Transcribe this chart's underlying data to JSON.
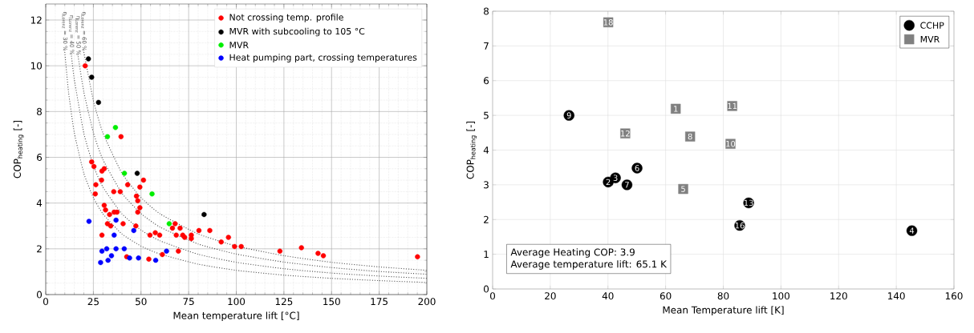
{
  "chart_data": [
    {
      "type": "scatter",
      "xlabel": "Mean temperature lift [°C]",
      "ylabel": "COP$_{heating}$ [-]",
      "xlim": [
        0,
        200
      ],
      "ylim": [
        0,
        12.7
      ],
      "xticks": [
        0,
        25,
        50,
        75,
        100,
        125,
        150,
        175,
        200
      ],
      "yticks": [
        0,
        2,
        4,
        6,
        8,
        10,
        12
      ],
      "grid": true,
      "legend": "top right",
      "marker": "circle",
      "series": [
        {
          "name": "Not crossing temp. profile",
          "color": "#ff0000",
          "x": [
            20.7,
            39.5,
            24.1,
            25.3,
            30.7,
            29.5,
            26.3,
            29.3,
            26.0,
            35.7,
            39.1,
            43.0,
            51.3,
            49.4,
            47.6,
            48.3,
            30.7,
            31.4,
            49.4,
            48.3,
            33.5,
            35.9,
            37.4,
            32.4,
            34.1,
            40.6,
            47.3,
            29.5,
            54.7,
            57.5,
            59.8,
            67.9,
            66.5,
            70.5,
            68.5,
            71.9,
            72.9,
            76.4,
            76.4,
            80.4,
            86.1,
            92.1,
            95.9,
            99.1,
            102.6,
            122.9,
            134.2,
            142.9,
            145.7,
            195.1,
            69.6,
            61.2,
            54.1,
            42.5
          ],
          "values": [
            10.0,
            6.9,
            5.8,
            5.6,
            5.5,
            5.4,
            4.8,
            5.0,
            4.4,
            4.5,
            4.5,
            4.8,
            5.0,
            4.7,
            4.3,
            4.1,
            3.9,
            3.7,
            3.8,
            3.6,
            3.5,
            3.6,
            3.6,
            3.1,
            3.0,
            3.1,
            3.0,
            2.6,
            2.6,
            2.7,
            2.6,
            3.1,
            2.9,
            2.9,
            2.6,
            2.6,
            2.5,
            2.6,
            2.45,
            2.8,
            2.8,
            2.3,
            2.5,
            2.1,
            2.1,
            1.9,
            2.05,
            1.8,
            1.7,
            1.65,
            1.9,
            1.75,
            1.55,
            1.65
          ]
        },
        {
          "name": "MVR with subcooling to 105 °C",
          "color": "#000000",
          "x": [
            22.4,
            24.1,
            27.7,
            48.0,
            83.1
          ],
          "values": [
            10.3,
            9.5,
            8.4,
            5.3,
            3.5
          ]
        },
        {
          "name": "MVR",
          "color": "#00ee00",
          "x": [
            36.6,
            32.4,
            41.3,
            55.8,
            64.8
          ],
          "values": [
            7.3,
            6.9,
            5.3,
            4.4,
            3.1
          ]
        },
        {
          "name": "Heat pumping part, crossing temperatures",
          "color": "#0000ff",
          "x": [
            22.7,
            36.9,
            35.9,
            46.2,
            29.5,
            32.0,
            36.9,
            41.2,
            28.8,
            32.7,
            34.5,
            44.0,
            48.7,
            57.7,
            63.4
          ],
          "values": [
            3.2,
            3.25,
            2.6,
            2.8,
            1.9,
            2.0,
            2.0,
            2.0,
            1.4,
            1.5,
            1.7,
            1.6,
            1.6,
            1.5,
            1.9
          ]
        },
        {
          "type": "line",
          "name": "η$_{Lorenz}$ = 30 %",
          "color": "#555555",
          "marker": "none",
          "line_style": "dotted",
          "x": [
            10,
            12,
            15,
            20,
            25,
            30,
            40,
            50,
            60,
            80,
            100,
            125,
            150,
            175,
            200
          ],
          "values": [
            10.6,
            8.83,
            7.07,
            5.3,
            4.24,
            3.53,
            2.65,
            2.12,
            1.77,
            1.33,
            1.06,
            0.85,
            0.71,
            0.61,
            0.53
          ]
        },
        {
          "type": "line",
          "name": "η$_{Lorenz}$ = 40 %",
          "color": "#555555",
          "marker": "none",
          "line_style": "dotted",
          "x": [
            13.5,
            15,
            20,
            25,
            30,
            40,
            50,
            60,
            80,
            100,
            125,
            150,
            175,
            200
          ],
          "values": [
            10.44,
            9.4,
            7.05,
            5.64,
            4.7,
            3.53,
            2.82,
            2.35,
            1.76,
            1.41,
            1.13,
            0.94,
            0.81,
            0.71
          ]
        },
        {
          "type": "line",
          "name": "η$_{Lorenz}$ = 50 %",
          "color": "#555555",
          "marker": "none",
          "line_style": "dotted",
          "x": [
            17,
            20,
            25,
            30,
            40,
            50,
            60,
            80,
            100,
            125,
            150,
            175,
            200
          ],
          "values": [
            10.41,
            8.85,
            7.08,
            5.9,
            4.43,
            3.54,
            2.95,
            2.21,
            1.77,
            1.42,
            1.18,
            1.01,
            0.89
          ]
        },
        {
          "type": "line",
          "name": "η$_{Lorenz}$ = 60 %",
          "color": "#555555",
          "marker": "none",
          "line_style": "dotted",
          "x": [
            20,
            25,
            30,
            40,
            50,
            60,
            80,
            100,
            125,
            150,
            175,
            200
          ],
          "values": [
            10.6,
            8.48,
            7.07,
            5.3,
            4.24,
            3.53,
            2.65,
            2.12,
            1.7,
            1.41,
            1.21,
            1.06
          ]
        }
      ]
    },
    {
      "type": "scatter",
      "xlabel": "Mean Temperature lift [K]",
      "ylabel": "COP$_{heating}$ [-]",
      "xlim": [
        0,
        160
      ],
      "ylim": [
        0,
        8
      ],
      "xticks": [
        0,
        20,
        40,
        60,
        80,
        100,
        120,
        140,
        160
      ],
      "yticks": [
        0,
        1,
        2,
        3,
        4,
        5,
        6,
        7,
        8
      ],
      "grid": true,
      "legend": "top right",
      "annotations": [
        "Average Heating COP: 3.9",
        "Average temperature lift: 65.1 K",
        {
          "text": "9",
          "x": 26.5,
          "y": 5.0
        },
        {
          "text": "2",
          "x": 40.1,
          "y": 3.08
        },
        {
          "text": "3",
          "x": 42.6,
          "y": 3.2
        },
        {
          "text": "7",
          "x": 46.6,
          "y": 3.0
        },
        {
          "text": "6",
          "x": 50.1,
          "y": 3.48
        },
        {
          "text": "13",
          "x": 88.8,
          "y": 2.48
        },
        {
          "text": "16",
          "x": 85.7,
          "y": 1.83
        },
        {
          "text": "4",
          "x": 145.4,
          "y": 1.68
        },
        {
          "text": "18",
          "x": 40.1,
          "y": 7.68
        },
        {
          "text": "1",
          "x": 63.5,
          "y": 5.19
        },
        {
          "text": "11",
          "x": 83.1,
          "y": 5.27
        },
        {
          "text": "12",
          "x": 46.0,
          "y": 4.48
        },
        {
          "text": "8",
          "x": 68.5,
          "y": 4.39
        },
        {
          "text": "10",
          "x": 82.5,
          "y": 4.18
        },
        {
          "text": "5",
          "x": 66.1,
          "y": 2.88
        }
      ],
      "series": [
        {
          "name": "CCHP",
          "color": "#000000",
          "marker": "circle",
          "x": [
            26.5,
            40.1,
            42.6,
            46.6,
            50.1,
            88.8,
            85.7,
            145.4
          ],
          "values": [
            5.0,
            3.08,
            3.2,
            3.0,
            3.48,
            2.48,
            1.83,
            1.68
          ]
        },
        {
          "name": "MVR",
          "color": "#808080",
          "marker": "square",
          "x": [
            40.1,
            63.5,
            83.1,
            46.0,
            68.5,
            82.5,
            66.1
          ],
          "values": [
            7.68,
            5.19,
            5.27,
            4.48,
            4.39,
            4.18,
            2.88
          ]
        }
      ]
    }
  ]
}
